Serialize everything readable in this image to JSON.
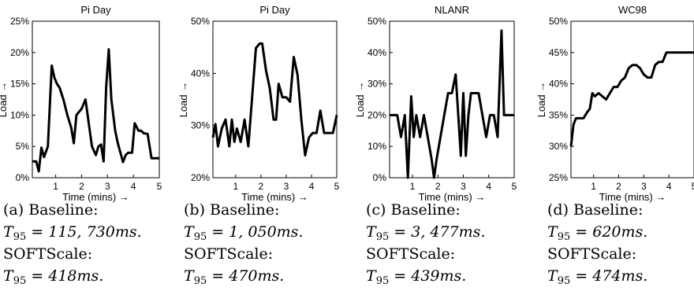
{
  "chart_data": [
    {
      "type": "line",
      "title": "Pi Day",
      "xlabel": "Time (mins) →",
      "ylabel": "Load →",
      "x_ticks": [
        "1",
        "2",
        "3",
        "4",
        "5"
      ],
      "y_ticks": [
        "0%",
        "5%",
        "10%",
        "15%",
        "20%",
        "25%"
      ],
      "xlim": [
        0.1,
        5.0
      ],
      "ylim": [
        0,
        25
      ],
      "series": [
        {
          "x": [
            0.1,
            0.25,
            0.35,
            0.45,
            0.55,
            0.7,
            0.85,
            0.95,
            1.05,
            1.15,
            1.3,
            1.45,
            1.6,
            1.7,
            1.8,
            1.9,
            2.0,
            2.15,
            2.3,
            2.4,
            2.55,
            2.65,
            2.75,
            2.85,
            2.95,
            3.05,
            3.15,
            3.3,
            3.4,
            3.5,
            3.6,
            3.7,
            3.8,
            3.95,
            4.05,
            4.2,
            4.3,
            4.4,
            4.55,
            4.7,
            4.85,
            5.0
          ],
          "values": [
            2.6,
            2.6,
            1.0,
            4.8,
            3.3,
            5.0,
            17.9,
            16.0,
            15.0,
            14.4,
            12.5,
            10.0,
            8.0,
            5.5,
            10.0,
            10.5,
            11.0,
            12.5,
            8.0,
            5.0,
            3.6,
            5.0,
            5.3,
            2.6,
            14.4,
            20.5,
            12.5,
            7.5,
            5.5,
            4.0,
            2.5,
            3.6,
            4.0,
            4.0,
            8.7,
            7.5,
            7.5,
            7.1,
            7.0,
            3.1,
            3.1,
            3.1
          ]
        }
      ]
    },
    {
      "type": "line",
      "title": "Pi Day",
      "xlabel": "Time (mins) →",
      "ylabel": "Load →",
      "x_ticks": [
        "1",
        "2",
        "3",
        "4",
        "5"
      ],
      "y_ticks": [
        "20%",
        "30%",
        "40%",
        "50%"
      ],
      "xlim": [
        0.1,
        5.0
      ],
      "ylim": [
        15,
        50
      ],
      "series": [
        {
          "x": [
            0.1,
            0.2,
            0.3,
            0.45,
            0.6,
            0.75,
            0.85,
            0.95,
            1.05,
            1.2,
            1.35,
            1.5,
            1.65,
            1.8,
            1.95,
            2.05,
            2.2,
            2.35,
            2.5,
            2.6,
            2.7,
            2.85,
            3.0,
            3.15,
            3.3,
            3.45,
            3.6,
            3.75,
            3.9,
            4.05,
            4.2,
            4.35,
            4.5,
            4.6,
            4.7,
            4.85,
            5.0
          ],
          "values": [
            24.0,
            27.0,
            22.0,
            26.0,
            28.0,
            22.0,
            28.0,
            23.0,
            26.0,
            23.0,
            28.0,
            22.0,
            33.0,
            44.0,
            45.0,
            45.0,
            39.0,
            35.0,
            28.0,
            28.0,
            36.0,
            33.0,
            33.0,
            32.0,
            42.0,
            38.0,
            28.0,
            20.0,
            24.0,
            25.0,
            25.0,
            30.0,
            25.0,
            25.0,
            25.0,
            25.0,
            29.0
          ]
        }
      ]
    },
    {
      "type": "line",
      "title": "NLANR",
      "xlabel": "Time (mins) →",
      "ylabel": "Load →",
      "x_ticks": [
        "1",
        "2",
        "3",
        "4",
        "5"
      ],
      "y_ticks": [
        "0%",
        "10%",
        "20%",
        "30%",
        "40%",
        "50%"
      ],
      "xlim": [
        0.1,
        5.0
      ],
      "ylim": [
        0,
        50
      ],
      "series": [
        {
          "x": [
            0.1,
            0.25,
            0.4,
            0.55,
            0.7,
            0.82,
            0.95,
            1.05,
            1.15,
            1.3,
            1.45,
            1.6,
            1.75,
            1.85,
            1.95,
            2.1,
            2.25,
            2.4,
            2.55,
            2.7,
            2.8,
            2.9,
            3.0,
            3.1,
            3.2,
            3.3,
            3.45,
            3.6,
            3.75,
            3.9,
            4.05,
            4.2,
            4.35,
            4.5,
            4.6,
            4.7,
            4.85,
            5.0
          ],
          "values": [
            20.0,
            20.0,
            20.0,
            13.0,
            20.0,
            0.0,
            26.0,
            13.0,
            20.0,
            13.0,
            20.0,
            13.0,
            6.0,
            0.0,
            6.0,
            13.0,
            20.0,
            27.0,
            27.0,
            33.0,
            20.0,
            7.0,
            27.0,
            7.0,
            20.0,
            27.0,
            27.0,
            27.0,
            20.0,
            13.0,
            20.0,
            20.0,
            13.0,
            47.0,
            20.0,
            20.0,
            20.0,
            20.0
          ]
        }
      ]
    },
    {
      "type": "line",
      "title": "WC98",
      "xlabel": "Time (mins) →",
      "ylabel": "Load →",
      "x_ticks": [
        "1",
        "2",
        "3",
        "4",
        "5"
      ],
      "y_ticks": [
        "25%",
        "30%",
        "35%",
        "40%",
        "45%",
        "50%"
      ],
      "xlim": [
        0.1,
        5.0
      ],
      "ylim": [
        25,
        50
      ],
      "series": [
        {
          "x": [
            0.1,
            0.2,
            0.3,
            0.45,
            0.6,
            0.75,
            0.85,
            0.95,
            1.05,
            1.2,
            1.35,
            1.5,
            1.65,
            1.8,
            1.95,
            2.1,
            2.25,
            2.4,
            2.55,
            2.7,
            2.85,
            3.0,
            3.15,
            3.3,
            3.45,
            3.6,
            3.75,
            3.9,
            4.05,
            4.2,
            4.35,
            4.5,
            4.65,
            4.8,
            4.9,
            5.0
          ],
          "values": [
            30.0,
            33.5,
            34.5,
            34.5,
            34.5,
            35.5,
            36.0,
            38.5,
            38.0,
            38.5,
            38.0,
            37.5,
            38.5,
            39.5,
            39.5,
            40.5,
            41.0,
            42.5,
            43.0,
            43.0,
            42.5,
            41.5,
            41.0,
            41.0,
            43.0,
            43.5,
            43.5,
            45.0,
            45.0,
            45.0,
            45.0,
            45.0,
            45.0,
            45.0,
            45.0,
            45.0
          ]
        }
      ]
    }
  ],
  "captions": [
    {
      "line1": "(a) Baseline:",
      "base_value": "= 115, 730ms.",
      "soft_label": "SOFTScale:",
      "soft_value": "= 418ms."
    },
    {
      "line1": "(b) Baseline:",
      "base_value": "= 1, 050ms.",
      "soft_label": "SOFTScale:",
      "soft_value": "= 470ms."
    },
    {
      "line1": "(c) Baseline:",
      "base_value": "= 3, 477ms.",
      "soft_label": "SOFTScale:",
      "soft_value": "= 439ms."
    },
    {
      "line1": "(d) Baseline:",
      "base_value": "= 620ms.",
      "soft_label": "SOFTScale:",
      "soft_value": "= 474ms."
    }
  ],
  "metric_symbol": "T",
  "metric_subscript": "95"
}
